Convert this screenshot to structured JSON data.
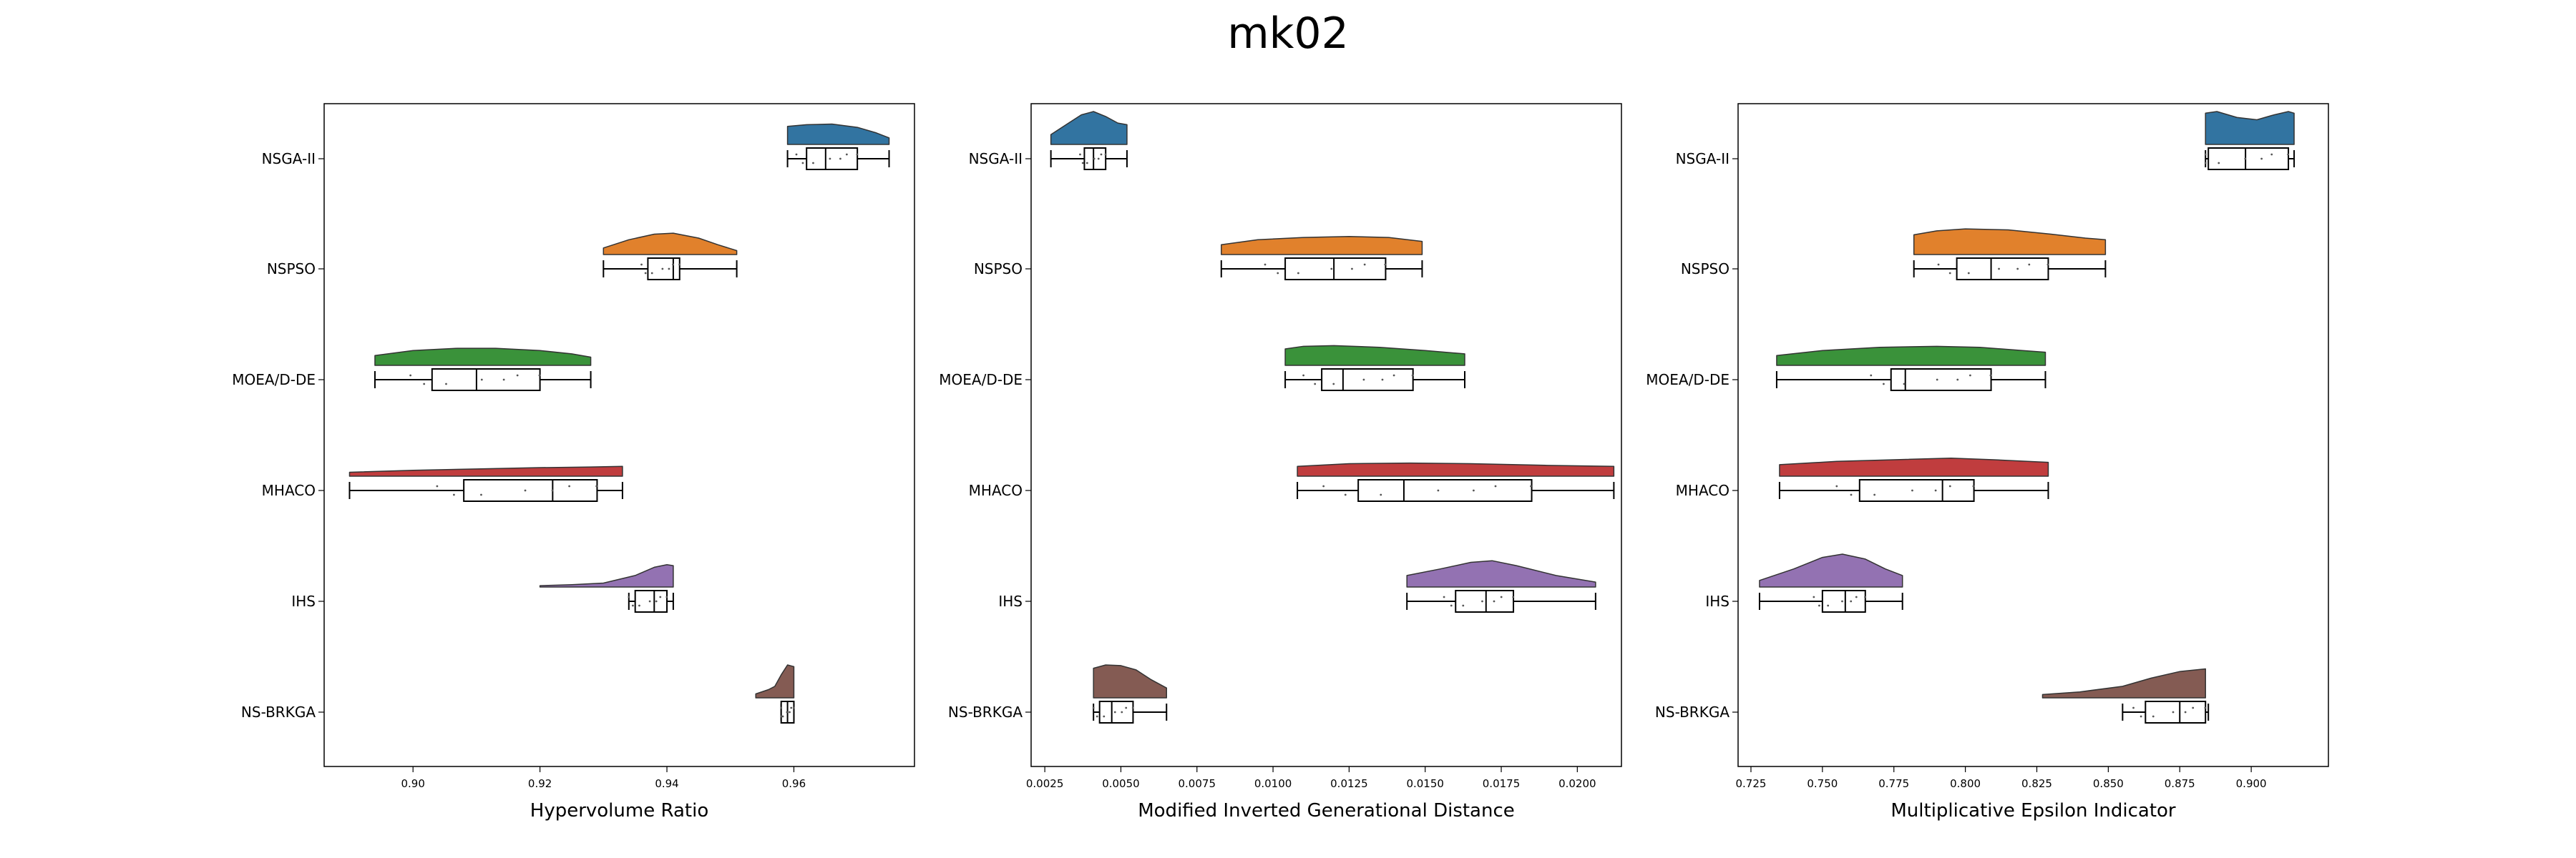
{
  "figure": {
    "title": "mk02"
  },
  "algorithms": [
    "NSGA-II",
    "NSPSO",
    "MOEA/D-DE",
    "MHACO",
    "IHS",
    "NS-BRKGA"
  ],
  "colors": {
    "NSGA-II": "#3274a1",
    "NSPSO": "#e1812c",
    "MOEA/D-DE": "#3a923a",
    "MHACO": "#c03d3e",
    "IHS": "#9372b2",
    "NS-BRKGA": "#845b53"
  },
  "chart_data": [
    {
      "type": "raincloud",
      "xlabel": "Hypervolume Ratio",
      "xlim": [
        0.886,
        0.979
      ],
      "ticks": [
        0.9,
        0.92,
        0.94,
        0.96
      ],
      "tick_labels": [
        "0.90",
        "0.92",
        "0.94",
        "0.96"
      ],
      "series": [
        {
          "name": "NSGA-II",
          "min": 0.959,
          "q1": 0.962,
          "median": 0.965,
          "q3": 0.97,
          "max": 0.975,
          "density": [
            [
              0.959,
              0.55
            ],
            [
              0.962,
              0.6
            ],
            [
              0.966,
              0.62
            ],
            [
              0.97,
              0.52
            ],
            [
              0.973,
              0.35
            ],
            [
              0.975,
              0.2
            ]
          ]
        },
        {
          "name": "NSPSO",
          "min": 0.93,
          "q1": 0.937,
          "median": 0.941,
          "q3": 0.942,
          "max": 0.951,
          "density": [
            [
              0.93,
              0.2
            ],
            [
              0.934,
              0.45
            ],
            [
              0.938,
              0.62
            ],
            [
              0.941,
              0.65
            ],
            [
              0.945,
              0.5
            ],
            [
              0.948,
              0.3
            ],
            [
              0.951,
              0.12
            ]
          ]
        },
        {
          "name": "MOEA/D-DE",
          "min": 0.894,
          "q1": 0.903,
          "median": 0.91,
          "q3": 0.92,
          "max": 0.928,
          "density": [
            [
              0.894,
              0.3
            ],
            [
              0.9,
              0.45
            ],
            [
              0.907,
              0.52
            ],
            [
              0.913,
              0.52
            ],
            [
              0.92,
              0.45
            ],
            [
              0.925,
              0.35
            ],
            [
              0.928,
              0.25
            ]
          ]
        },
        {
          "name": "MHACO",
          "min": 0.89,
          "q1": 0.908,
          "median": 0.922,
          "q3": 0.929,
          "max": 0.933,
          "density": [
            [
              0.89,
              0.12
            ],
            [
              0.9,
              0.18
            ],
            [
              0.91,
              0.22
            ],
            [
              0.92,
              0.26
            ],
            [
              0.928,
              0.28
            ],
            [
              0.933,
              0.3
            ]
          ]
        },
        {
          "name": "IHS",
          "min": 0.934,
          "q1": 0.935,
          "median": 0.938,
          "q3": 0.94,
          "max": 0.941,
          "density": [
            [
              0.92,
              0.04
            ],
            [
              0.925,
              0.07
            ],
            [
              0.93,
              0.12
            ],
            [
              0.935,
              0.35
            ],
            [
              0.938,
              0.6
            ],
            [
              0.94,
              0.68
            ],
            [
              0.941,
              0.65
            ]
          ]
        },
        {
          "name": "NS-BRKGA",
          "min": 0.958,
          "q1": 0.958,
          "median": 0.959,
          "q3": 0.96,
          "max": 0.96,
          "density": [
            [
              0.954,
              0.12
            ],
            [
              0.956,
              0.25
            ],
            [
              0.957,
              0.35
            ],
            [
              0.958,
              0.7
            ],
            [
              0.959,
              1.0
            ],
            [
              0.96,
              0.95
            ]
          ]
        }
      ]
    },
    {
      "type": "raincloud",
      "xlabel": "Modified Inverted Generational Distance",
      "xlim": [
        0.00205,
        0.02145
      ],
      "ticks": [
        0.0025,
        0.005,
        0.0075,
        0.01,
        0.0125,
        0.015,
        0.0175,
        0.02
      ],
      "tick_labels": [
        "0.0025",
        "0.0050",
        "0.0075",
        "0.0100",
        "0.0125",
        "0.0150",
        "0.0175",
        "0.0200"
      ],
      "series": [
        {
          "name": "NSGA-II",
          "min": 0.0027,
          "q1": 0.0038,
          "median": 0.0041,
          "q3": 0.0045,
          "max": 0.0052,
          "density": [
            [
              0.0027,
              0.3
            ],
            [
              0.0032,
              0.6
            ],
            [
              0.0037,
              0.9
            ],
            [
              0.0041,
              1.0
            ],
            [
              0.0045,
              0.85
            ],
            [
              0.0049,
              0.65
            ],
            [
              0.0052,
              0.6
            ]
          ]
        },
        {
          "name": "NSPSO",
          "min": 0.0083,
          "q1": 0.0104,
          "median": 0.012,
          "q3": 0.0137,
          "max": 0.0149,
          "density": [
            [
              0.0083,
              0.3
            ],
            [
              0.0095,
              0.45
            ],
            [
              0.011,
              0.52
            ],
            [
              0.0125,
              0.55
            ],
            [
              0.0138,
              0.52
            ],
            [
              0.0149,
              0.4
            ]
          ]
        },
        {
          "name": "MOEA/D-DE",
          "min": 0.0104,
          "q1": 0.0116,
          "median": 0.0123,
          "q3": 0.0146,
          "max": 0.0163,
          "density": [
            [
              0.0104,
              0.5
            ],
            [
              0.011,
              0.58
            ],
            [
              0.012,
              0.6
            ],
            [
              0.0135,
              0.55
            ],
            [
              0.015,
              0.45
            ],
            [
              0.0163,
              0.35
            ]
          ]
        },
        {
          "name": "MHACO",
          "min": 0.0108,
          "q1": 0.0128,
          "median": 0.0143,
          "q3": 0.0185,
          "max": 0.0212,
          "density": [
            [
              0.0108,
              0.3
            ],
            [
              0.0125,
              0.38
            ],
            [
              0.0145,
              0.4
            ],
            [
              0.0165,
              0.38
            ],
            [
              0.019,
              0.33
            ],
            [
              0.0212,
              0.3
            ]
          ]
        },
        {
          "name": "IHS",
          "min": 0.0144,
          "q1": 0.016,
          "median": 0.017,
          "q3": 0.0179,
          "max": 0.0206,
          "density": [
            [
              0.0144,
              0.35
            ],
            [
              0.0155,
              0.55
            ],
            [
              0.0165,
              0.75
            ],
            [
              0.0172,
              0.8
            ],
            [
              0.018,
              0.65
            ],
            [
              0.0193,
              0.35
            ],
            [
              0.0206,
              0.15
            ]
          ]
        },
        {
          "name": "NS-BRKGA",
          "min": 0.0041,
          "q1": 0.0043,
          "median": 0.0047,
          "q3": 0.0054,
          "max": 0.0065,
          "density": [
            [
              0.0041,
              0.9
            ],
            [
              0.0045,
              1.0
            ],
            [
              0.005,
              0.98
            ],
            [
              0.0055,
              0.85
            ],
            [
              0.006,
              0.55
            ],
            [
              0.0065,
              0.3
            ]
          ]
        }
      ]
    },
    {
      "type": "raincloud",
      "xlabel": "Multiplicative Epsilon Indicator",
      "xlim": [
        0.7205,
        0.927
      ],
      "ticks": [
        0.725,
        0.75,
        0.775,
        0.8,
        0.825,
        0.85,
        0.875,
        0.9
      ],
      "tick_labels": [
        "0.725",
        "0.750",
        "0.775",
        "0.800",
        "0.825",
        "0.850",
        "0.875",
        "0.900"
      ],
      "series": [
        {
          "name": "NSGA-II",
          "min": 0.884,
          "q1": 0.885,
          "median": 0.898,
          "q3": 0.913,
          "max": 0.915,
          "density": [
            [
              0.884,
              0.95
            ],
            [
              0.888,
              1.0
            ],
            [
              0.895,
              0.82
            ],
            [
              0.902,
              0.75
            ],
            [
              0.908,
              0.9
            ],
            [
              0.913,
              1.0
            ],
            [
              0.915,
              0.95
            ]
          ]
        },
        {
          "name": "NSPSO",
          "min": 0.782,
          "q1": 0.797,
          "median": 0.809,
          "q3": 0.829,
          "max": 0.849,
          "density": [
            [
              0.782,
              0.6
            ],
            [
              0.79,
              0.72
            ],
            [
              0.8,
              0.78
            ],
            [
              0.815,
              0.75
            ],
            [
              0.83,
              0.62
            ],
            [
              0.842,
              0.5
            ],
            [
              0.849,
              0.45
            ]
          ]
        },
        {
          "name": "MOEA/D-DE",
          "min": 0.734,
          "q1": 0.774,
          "median": 0.779,
          "q3": 0.809,
          "max": 0.828,
          "density": [
            [
              0.734,
              0.3
            ],
            [
              0.75,
              0.45
            ],
            [
              0.77,
              0.55
            ],
            [
              0.79,
              0.58
            ],
            [
              0.805,
              0.55
            ],
            [
              0.82,
              0.45
            ],
            [
              0.828,
              0.4
            ]
          ]
        },
        {
          "name": "MHACO",
          "min": 0.735,
          "q1": 0.763,
          "median": 0.792,
          "q3": 0.803,
          "max": 0.829,
          "density": [
            [
              0.735,
              0.35
            ],
            [
              0.755,
              0.45
            ],
            [
              0.775,
              0.5
            ],
            [
              0.795,
              0.55
            ],
            [
              0.81,
              0.5
            ],
            [
              0.829,
              0.42
            ]
          ]
        },
        {
          "name": "IHS",
          "min": 0.728,
          "q1": 0.75,
          "median": 0.758,
          "q3": 0.765,
          "max": 0.778,
          "density": [
            [
              0.728,
              0.2
            ],
            [
              0.74,
              0.55
            ],
            [
              0.75,
              0.9
            ],
            [
              0.757,
              1.0
            ],
            [
              0.765,
              0.85
            ],
            [
              0.772,
              0.55
            ],
            [
              0.778,
              0.35
            ]
          ]
        },
        {
          "name": "NS-BRKGA",
          "min": 0.855,
          "q1": 0.863,
          "median": 0.875,
          "q3": 0.884,
          "max": 0.885,
          "density": [
            [
              0.827,
              0.1
            ],
            [
              0.84,
              0.18
            ],
            [
              0.855,
              0.35
            ],
            [
              0.865,
              0.6
            ],
            [
              0.875,
              0.8
            ],
            [
              0.884,
              0.88
            ]
          ]
        }
      ]
    }
  ]
}
